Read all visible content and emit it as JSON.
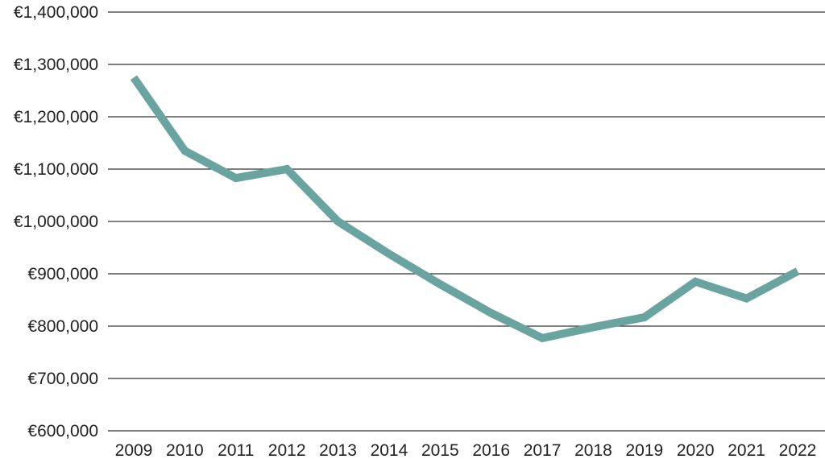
{
  "chart_data": {
    "type": "line",
    "title": "",
    "xlabel": "",
    "ylabel": "",
    "x": [
      "2009",
      "2010",
      "2011",
      "2012",
      "2013",
      "2014",
      "2015",
      "2016",
      "2017",
      "2018",
      "2019",
      "2020",
      "2021",
      "2022"
    ],
    "series": [
      {
        "values": [
          1275000,
          1135000,
          1083000,
          1100000,
          1000000,
          938000,
          880000,
          825000,
          777000,
          798000,
          817000,
          885000,
          853000,
          905000
        ],
        "color": "#6aa4a0"
      }
    ],
    "ylim": [
      600000,
      1400000
    ],
    "y_ticks": [
      600000,
      700000,
      800000,
      900000,
      1000000,
      1100000,
      1200000,
      1300000,
      1400000
    ],
    "y_tick_labels": [
      "€600,000",
      "€700,000",
      "€800,000",
      "€900,000",
      "€1,000,000",
      "€1,100,000",
      "€1,200,000",
      "€1,300,000",
      "€1,400,000"
    ],
    "grid": true,
    "legend": "none"
  }
}
